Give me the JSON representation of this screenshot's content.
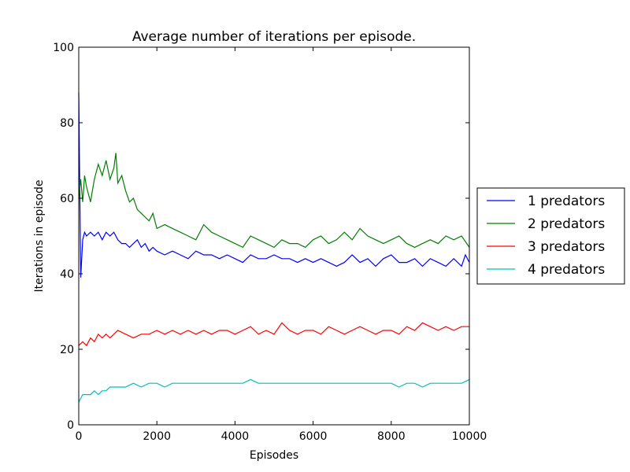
{
  "chart_data": {
    "type": "line",
    "title": "Average number of iterations per episode.",
    "xlabel": "Episodes",
    "ylabel": "Iterations in episode",
    "xlim": [
      0,
      10000
    ],
    "ylim": [
      0,
      100
    ],
    "xticks": [
      0,
      2000,
      4000,
      6000,
      8000,
      10000
    ],
    "yticks": [
      0,
      20,
      40,
      60,
      80,
      100
    ],
    "grid": false,
    "legend_placement": "right-outside",
    "series": [
      {
        "name": "1 predators",
        "color": "#0000ff",
        "x": [
          0,
          50,
          100,
          150,
          200,
          300,
          400,
          500,
          600,
          700,
          800,
          900,
          1000,
          1100,
          1200,
          1300,
          1400,
          1500,
          1600,
          1700,
          1800,
          1900,
          2000,
          2200,
          2400,
          2600,
          2800,
          3000,
          3200,
          3400,
          3600,
          3800,
          4000,
          4200,
          4400,
          4600,
          4800,
          5000,
          5200,
          5400,
          5600,
          5800,
          6000,
          6200,
          6400,
          6600,
          6800,
          7000,
          7200,
          7400,
          7600,
          7800,
          8000,
          8200,
          8400,
          8600,
          8800,
          9000,
          9200,
          9400,
          9600,
          9800,
          9900,
          10000
        ],
        "values": [
          88,
          39,
          49,
          51,
          50,
          51,
          50,
          51,
          49,
          51,
          50,
          51,
          49,
          48,
          48,
          47,
          48,
          49,
          47,
          48,
          46,
          47,
          46,
          45,
          46,
          45,
          44,
          46,
          45,
          45,
          44,
          45,
          44,
          43,
          45,
          44,
          44,
          45,
          44,
          44,
          43,
          44,
          43,
          44,
          43,
          42,
          43,
          45,
          43,
          44,
          42,
          44,
          45,
          43,
          43,
          44,
          42,
          44,
          43,
          42,
          44,
          42,
          45,
          43
        ]
      },
      {
        "name": "2 predators",
        "color": "#008000",
        "x": [
          0,
          50,
          100,
          150,
          200,
          300,
          400,
          500,
          600,
          700,
          800,
          900,
          950,
          1000,
          1100,
          1200,
          1300,
          1400,
          1500,
          1600,
          1700,
          1800,
          1900,
          2000,
          2200,
          2400,
          2600,
          2800,
          3000,
          3200,
          3400,
          3600,
          3800,
          4000,
          4200,
          4400,
          4600,
          4800,
          5000,
          5200,
          5400,
          5600,
          5800,
          6000,
          6200,
          6400,
          6600,
          6800,
          7000,
          7200,
          7400,
          7600,
          7800,
          8000,
          8200,
          8400,
          8600,
          8800,
          9000,
          9200,
          9400,
          9600,
          9800,
          10000
        ],
        "values": [
          60,
          65,
          59,
          66,
          63,
          59,
          65,
          69,
          66,
          70,
          65,
          68,
          72,
          64,
          66,
          62,
          59,
          60,
          57,
          56,
          55,
          54,
          56,
          52,
          53,
          52,
          51,
          50,
          49,
          53,
          51,
          50,
          49,
          48,
          47,
          50,
          49,
          48,
          47,
          49,
          48,
          48,
          47,
          49,
          50,
          48,
          49,
          51,
          49,
          52,
          50,
          49,
          48,
          49,
          50,
          48,
          47,
          48,
          49,
          48,
          50,
          49,
          50,
          47
        ]
      },
      {
        "name": "3 predators",
        "color": "#ff0000",
        "x": [
          0,
          100,
          200,
          300,
          400,
          500,
          600,
          700,
          800,
          900,
          1000,
          1200,
          1400,
          1600,
          1800,
          2000,
          2200,
          2400,
          2600,
          2800,
          3000,
          3200,
          3400,
          3600,
          3800,
          4000,
          4200,
          4400,
          4600,
          4800,
          5000,
          5200,
          5400,
          5600,
          5800,
          6000,
          6200,
          6400,
          6600,
          6800,
          7000,
          7200,
          7400,
          7600,
          7800,
          8000,
          8200,
          8400,
          8600,
          8800,
          9000,
          9200,
          9400,
          9600,
          9800,
          10000
        ],
        "values": [
          21,
          22,
          21,
          23,
          22,
          24,
          23,
          24,
          23,
          24,
          25,
          24,
          23,
          24,
          24,
          25,
          24,
          25,
          24,
          25,
          24,
          25,
          24,
          25,
          25,
          24,
          25,
          26,
          24,
          25,
          24,
          27,
          25,
          24,
          25,
          25,
          24,
          26,
          25,
          24,
          25,
          26,
          25,
          24,
          25,
          25,
          24,
          26,
          25,
          27,
          26,
          25,
          26,
          25,
          26,
          26
        ]
      },
      {
        "name": "4 predators",
        "color": "#00bfbf",
        "x": [
          0,
          100,
          200,
          300,
          400,
          500,
          600,
          700,
          800,
          900,
          1000,
          1200,
          1400,
          1600,
          1800,
          2000,
          2200,
          2400,
          2600,
          2800,
          3000,
          3200,
          3400,
          3600,
          3800,
          4000,
          4200,
          4400,
          4600,
          4800,
          5000,
          5200,
          5400,
          5600,
          5800,
          6000,
          6200,
          6400,
          6600,
          6800,
          7000,
          7200,
          7400,
          7600,
          7800,
          8000,
          8200,
          8400,
          8600,
          8800,
          9000,
          9200,
          9400,
          9600,
          9800,
          10000
        ],
        "values": [
          6,
          8,
          8,
          8,
          9,
          8,
          9,
          9,
          10,
          10,
          10,
          10,
          11,
          10,
          11,
          11,
          10,
          11,
          11,
          11,
          11,
          11,
          11,
          11,
          11,
          11,
          11,
          12,
          11,
          11,
          11,
          11,
          11,
          11,
          11,
          11,
          11,
          11,
          11,
          11,
          11,
          11,
          11,
          11,
          11,
          11,
          10,
          11,
          11,
          10,
          11,
          11,
          11,
          11,
          11,
          12
        ]
      }
    ]
  }
}
